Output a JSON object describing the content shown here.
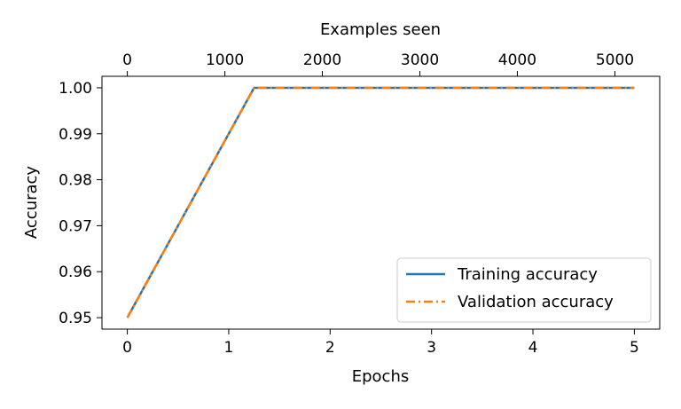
{
  "chart_data": {
    "type": "line",
    "title": "",
    "xlabel": "Epochs",
    "ylabel": "Accuracy",
    "x2label": "Examples seen",
    "xlim": [
      -0.25,
      5.25
    ],
    "ylim": [
      0.9475,
      1.0025
    ],
    "x2lim": [
      -0.25,
      5.25
    ],
    "x_ticks": [
      0,
      1,
      2,
      3,
      4,
      5
    ],
    "x_tick_labels": [
      "0",
      "1",
      "2",
      "3",
      "4",
      "5"
    ],
    "y_ticks": [
      0.95,
      0.96,
      0.97,
      0.98,
      0.99,
      1.0
    ],
    "y_tick_labels": [
      "0.95",
      "0.96",
      "0.97",
      "0.98",
      "0.99",
      "1.00"
    ],
    "x2_ticks": [
      0,
      0.962,
      1.923,
      2.885,
      3.846,
      4.808
    ],
    "x2_tick_labels": [
      "0",
      "1000",
      "2000",
      "3000",
      "4000",
      "5000"
    ],
    "grid": false,
    "legend_position": "lower-right",
    "series": [
      {
        "name": "Training accuracy",
        "color": "#1f77b4",
        "style": "solid",
        "x": [
          0,
          1.25,
          2.5,
          3.75,
          5
        ],
        "y": [
          0.95,
          1.0,
          1.0,
          1.0,
          1.0
        ]
      },
      {
        "name": "Validation accuracy",
        "color": "#ff7f0e",
        "style": "dashdot",
        "x": [
          0,
          1.25,
          2.5,
          3.75,
          5
        ],
        "y": [
          0.95,
          1.0,
          1.0,
          1.0,
          1.0
        ]
      }
    ]
  }
}
